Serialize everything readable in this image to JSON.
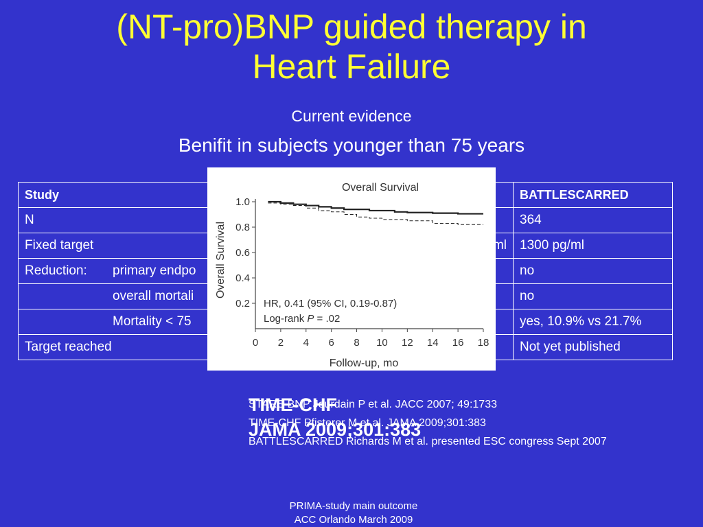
{
  "title": {
    "line1": "(NT-pro)BNP guided therapy in",
    "line2": "Heart Failure"
  },
  "subtitle": "Current evidence",
  "subheading": "Benifit in subjects younger than 75 years",
  "table": {
    "header": {
      "col1": "Study",
      "col2": "BATTLESCARRED"
    },
    "rows": [
      {
        "a": "N",
        "b": "",
        "frag": "",
        "c": "364"
      },
      {
        "a": "Fixed target",
        "b": "",
        "frag": "g/ml",
        "c": "1300 pg/ml"
      },
      {
        "a": "Reduction:",
        "b": "primary endpo",
        "frag": "",
        "c": "no"
      },
      {
        "a": "",
        "b": "overall mortali",
        "frag": "",
        "c": "no"
      },
      {
        "a": "",
        "b": "Mortality < 75",
        "frag": "",
        "c": "yes, 10.9% vs 21.7%"
      },
      {
        "a": "Target reached",
        "b": "",
        "frag": "",
        "c": "Not yet published"
      }
    ]
  },
  "figure": {
    "title": "Overall Survival",
    "ylabel": "Overall Survival",
    "xlabel": "Follow-up, mo",
    "annotation": {
      "line1": "HR, 0.41 (95% CI, 0.19-0.87)",
      "line2_prefix": "Log-rank ",
      "line2_p": "P",
      "line2_suffix": " = .02"
    },
    "chart_data": {
      "type": "line",
      "x_ticks": [
        "0",
        "2",
        "4",
        "6",
        "8",
        "10",
        "12",
        "14",
        "16",
        "18"
      ],
      "y_ticks": [
        "0.2",
        "0.4",
        "0.6",
        "0.8",
        "1.0"
      ],
      "xlim": [
        0,
        18
      ],
      "ylim": [
        0,
        1.0
      ],
      "series": [
        {
          "style": "solid",
          "x": [
            1,
            2,
            2,
            3,
            3,
            4,
            4,
            5,
            5,
            6,
            6,
            7,
            7,
            9,
            9,
            11,
            11,
            12,
            12,
            14,
            14,
            16,
            16,
            18
          ],
          "y": [
            1.0,
            1.0,
            0.99,
            0.99,
            0.98,
            0.98,
            0.97,
            0.97,
            0.96,
            0.96,
            0.95,
            0.95,
            0.94,
            0.94,
            0.93,
            0.93,
            0.92,
            0.92,
            0.915,
            0.915,
            0.91,
            0.91,
            0.905,
            0.905
          ]
        },
        {
          "style": "dashed",
          "x": [
            1,
            2,
            2,
            3,
            3,
            4,
            4,
            5,
            5,
            6,
            6,
            7,
            7,
            8,
            8,
            9,
            9,
            10,
            10,
            12,
            12,
            14,
            14,
            16,
            16,
            18
          ],
          "y": [
            0.99,
            0.99,
            0.98,
            0.98,
            0.97,
            0.97,
            0.95,
            0.95,
            0.93,
            0.93,
            0.92,
            0.92,
            0.9,
            0.9,
            0.88,
            0.88,
            0.87,
            0.87,
            0.86,
            0.86,
            0.85,
            0.85,
            0.83,
            0.83,
            0.82,
            0.82
          ]
        }
      ]
    }
  },
  "overlay": {
    "line1": "TIME-CHF",
    "line2": "JAMA 2009;301:383"
  },
  "references": [
    "STARS BNP Jourdain P et al. JACC 2007; 49:1733",
    "TIME-CHF Pfisterer M et al. JAMA 2009;301:383",
    "BATTLESCARRED Richards M et al. presented ESC congress Sept 2007"
  ],
  "footer": {
    "line1": "PRIMA-study main outcome",
    "line2": "ACC Orlando March 2009"
  }
}
